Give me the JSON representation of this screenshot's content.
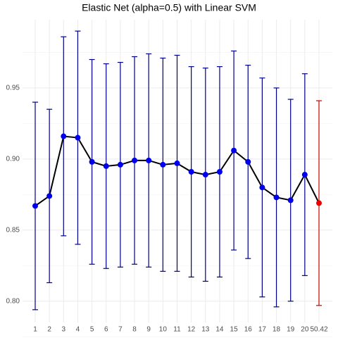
{
  "chart_data": {
    "type": "errorbar-line",
    "title": "Elastic Net (alpha=0.5) with Linear SVM",
    "categories": [
      "1",
      "2",
      "3",
      "4",
      "5",
      "6",
      "7",
      "8",
      "9",
      "10",
      "11",
      "12",
      "13",
      "14",
      "15",
      "16",
      "17",
      "18",
      "19",
      "20",
      "50.42"
    ],
    "values": [
      0.867,
      0.874,
      0.916,
      0.915,
      0.898,
      0.895,
      0.896,
      0.899,
      0.899,
      0.896,
      0.897,
      0.891,
      0.889,
      0.891,
      0.906,
      0.898,
      0.88,
      0.873,
      0.871,
      0.889,
      0.869
    ],
    "errors": [
      0.073,
      0.061,
      0.07,
      0.075,
      0.072,
      0.072,
      0.072,
      0.073,
      0.075,
      0.075,
      0.076,
      0.074,
      0.075,
      0.074,
      0.07,
      0.068,
      0.077,
      0.077,
      0.071,
      0.071,
      0.072
    ],
    "colors": [
      "#00008b",
      "#00008b",
      "#00008b",
      "#00008b",
      "#00008b",
      "#00008b",
      "#00008b",
      "#00008b",
      "#00008b",
      "#00008b",
      "#00008b",
      "#00008b",
      "#00008b",
      "#00008b",
      "#00008b",
      "#00008b",
      "#00008b",
      "#00008b",
      "#00008b",
      "#00008b",
      "#cc0000"
    ],
    "point_colors": [
      "#0000ee",
      "#0000ee",
      "#0000ee",
      "#0000ee",
      "#0000ee",
      "#0000ee",
      "#0000ee",
      "#0000ee",
      "#0000ee",
      "#0000ee",
      "#0000ee",
      "#0000ee",
      "#0000ee",
      "#0000ee",
      "#0000ee",
      "#0000ee",
      "#0000ee",
      "#0000ee",
      "#0000ee",
      "#0000ee",
      "#ee0000"
    ],
    "line_color": "#000000",
    "ylim": [
      0.785,
      0.998
    ],
    "yticks": [
      {
        "value": 0.8,
        "label": "0.80"
      },
      {
        "value": 0.85,
        "label": "0.85"
      },
      {
        "value": 0.9,
        "label": "0.90"
      },
      {
        "value": 0.95,
        "label": "0.95"
      }
    ],
    "grid": true
  }
}
